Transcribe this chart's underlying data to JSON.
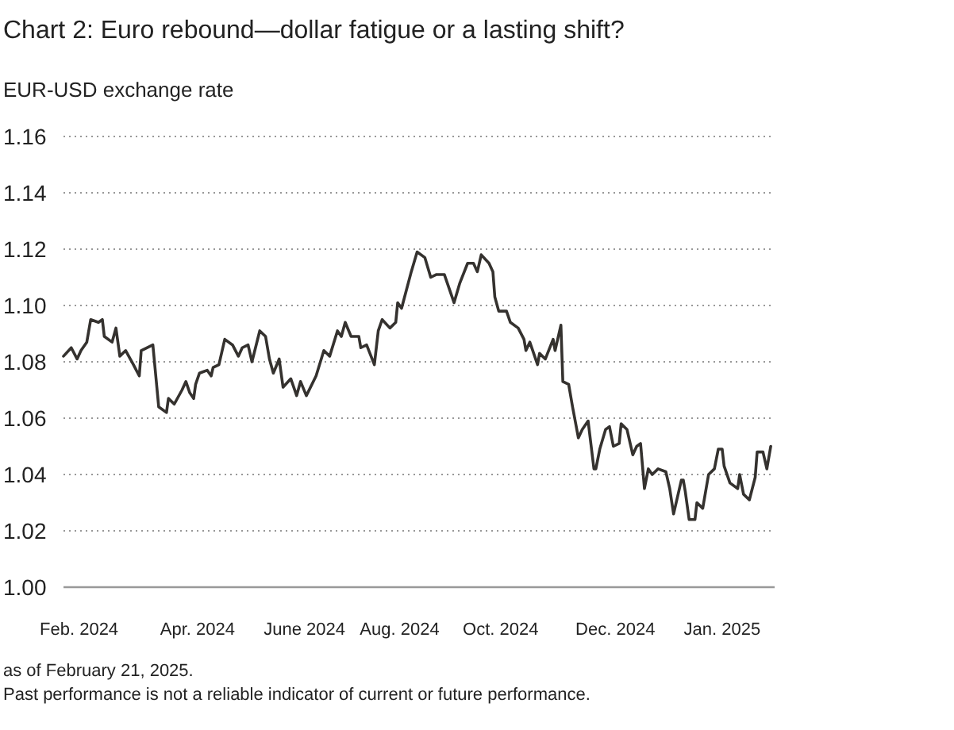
{
  "chart_data": {
    "type": "line",
    "title": "Chart 2: Euro rebound—dollar fatigue or a lasting shift?",
    "ylabel": "EUR-USD exchange rate",
    "annotations": [
      "as of February 21, 2025.",
      "Past performance is not a reliable indicator of current or future performance."
    ],
    "xlim": [
      "2024-02-21",
      "2025-02-21"
    ],
    "xticks": [
      {
        "value": "2024-02-29",
        "label": "Feb. 2024"
      },
      {
        "value": "2024-04-30",
        "label": "Apr. 2024"
      },
      {
        "value": "2024-06-24",
        "label": "June 2024"
      },
      {
        "value": "2024-08-12",
        "label": "Aug. 2024"
      },
      {
        "value": "2024-10-03",
        "label": "Oct. 2024"
      },
      {
        "value": "2024-12-01",
        "label": "Dec. 2024"
      },
      {
        "value": "2025-01-25",
        "label": "Jan. 2025"
      }
    ],
    "ylim": [
      1.0,
      1.16
    ],
    "yticks": [
      {
        "value": 1.0,
        "label": "1.00"
      },
      1.02,
      1.04,
      1.06,
      1.08,
      {
        "value": 1.1,
        "label": "1.10"
      },
      1.12,
      1.14,
      1.16
    ],
    "grid": "y",
    "line_style": "solid",
    "marker": "none",
    "x": [
      "2024-02-21",
      "2024-02-25",
      "2024-02-28",
      "2024-03-01",
      "2024-03-04",
      "2024-03-06",
      "2024-03-10",
      "2024-03-12",
      "2024-03-13",
      "2024-03-17",
      "2024-03-19",
      "2024-03-21",
      "2024-03-24",
      "2024-03-28",
      "2024-03-31",
      "2024-04-01",
      "2024-04-07",
      "2024-04-10",
      "2024-04-14",
      "2024-04-15",
      "2024-04-18",
      "2024-04-22",
      "2024-04-24",
      "2024-04-26",
      "2024-04-28",
      "2024-04-29",
      "2024-05-01",
      "2024-05-05",
      "2024-05-07",
      "2024-05-08",
      "2024-05-11",
      "2024-05-14",
      "2024-05-18",
      "2024-05-21",
      "2024-05-23",
      "2024-05-26",
      "2024-05-28",
      "2024-06-01",
      "2024-06-04",
      "2024-06-06",
      "2024-06-08",
      "2024-06-11",
      "2024-06-13",
      "2024-06-17",
      "2024-06-20",
      "2024-06-22",
      "2024-06-25",
      "2024-06-30",
      "2024-07-04",
      "2024-07-07",
      "2024-07-11",
      "2024-07-13",
      "2024-07-15",
      "2024-07-18",
      "2024-07-22",
      "2024-07-23",
      "2024-07-26",
      "2024-07-30",
      "2024-08-01",
      "2024-08-03",
      "2024-08-07",
      "2024-08-10",
      "2024-08-11",
      "2024-08-13",
      "2024-08-18",
      "2024-08-21",
      "2024-08-25",
      "2024-08-28",
      "2024-08-31",
      "2024-09-04",
      "2024-09-09",
      "2024-09-12",
      "2024-09-16",
      "2024-09-19",
      "2024-09-21",
      "2024-09-23",
      "2024-09-27",
      "2024-09-29",
      "2024-09-30",
      "2024-10-02",
      "2024-10-06",
      "2024-10-08",
      "2024-10-12",
      "2024-10-15",
      "2024-10-16",
      "2024-10-18",
      "2024-10-22",
      "2024-10-23",
      "2024-10-26",
      "2024-10-30",
      "2024-10-31",
      "2024-11-03",
      "2024-11-04",
      "2024-11-07",
      "2024-11-09",
      "2024-11-12",
      "2024-11-14",
      "2024-11-17",
      "2024-11-20",
      "2024-11-21",
      "2024-11-23",
      "2024-11-26",
      "2024-11-28",
      "2024-11-30",
      "2024-12-03",
      "2024-12-04",
      "2024-12-07",
      "2024-12-10",
      "2024-12-12",
      "2024-12-14",
      "2024-12-16",
      "2024-12-18",
      "2024-12-20",
      "2024-12-23",
      "2024-12-27",
      "2024-12-29",
      "2024-12-31",
      "2025-01-04",
      "2025-01-05",
      "2025-01-06",
      "2025-01-08",
      "2025-01-11",
      "2025-01-12",
      "2025-01-15",
      "2025-01-18",
      "2025-01-21",
      "2025-01-23",
      "2025-01-25",
      "2025-01-26",
      "2025-01-29",
      "2025-02-02",
      "2025-02-03",
      "2025-02-05",
      "2025-02-08",
      "2025-02-11",
      "2025-02-12",
      "2025-02-15",
      "2025-02-17",
      "2025-02-19"
    ],
    "series": [
      {
        "color": "#35322f",
        "values": [
          1.082,
          1.085,
          1.081,
          1.084,
          1.087,
          1.095,
          1.094,
          1.095,
          1.089,
          1.087,
          1.092,
          1.082,
          1.084,
          1.079,
          1.075,
          1.084,
          1.086,
          1.064,
          1.062,
          1.067,
          1.065,
          1.07,
          1.073,
          1.069,
          1.067,
          1.072,
          1.076,
          1.077,
          1.075,
          1.078,
          1.079,
          1.088,
          1.086,
          1.082,
          1.085,
          1.086,
          1.08,
          1.091,
          1.089,
          1.081,
          1.076,
          1.081,
          1.071,
          1.074,
          1.068,
          1.073,
          1.068,
          1.075,
          1.084,
          1.082,
          1.091,
          1.089,
          1.094,
          1.089,
          1.089,
          1.085,
          1.086,
          1.079,
          1.091,
          1.095,
          1.092,
          1.094,
          1.101,
          1.099,
          1.112,
          1.119,
          1.117,
          1.11,
          1.111,
          1.111,
          1.101,
          1.108,
          1.115,
          1.115,
          1.112,
          1.118,
          1.115,
          1.112,
          1.103,
          1.098,
          1.098,
          1.094,
          1.092,
          1.088,
          1.084,
          1.087,
          1.079,
          1.083,
          1.081,
          1.088,
          1.084,
          1.093,
          1.073,
          1.072,
          1.064,
          1.053,
          1.056,
          1.059,
          1.042,
          1.042,
          1.049,
          1.056,
          1.057,
          1.05,
          1.051,
          1.058,
          1.056,
          1.047,
          1.05,
          1.051,
          1.035,
          1.042,
          1.04,
          1.042,
          1.041,
          1.035,
          1.026,
          1.038,
          1.038,
          1.034,
          1.024,
          1.024,
          1.03,
          1.028,
          1.04,
          1.042,
          1.049,
          1.049,
          1.043,
          1.037,
          1.035,
          1.04,
          1.033,
          1.031,
          1.039,
          1.048,
          1.048,
          1.042,
          1.05
        ]
      }
    ]
  }
}
